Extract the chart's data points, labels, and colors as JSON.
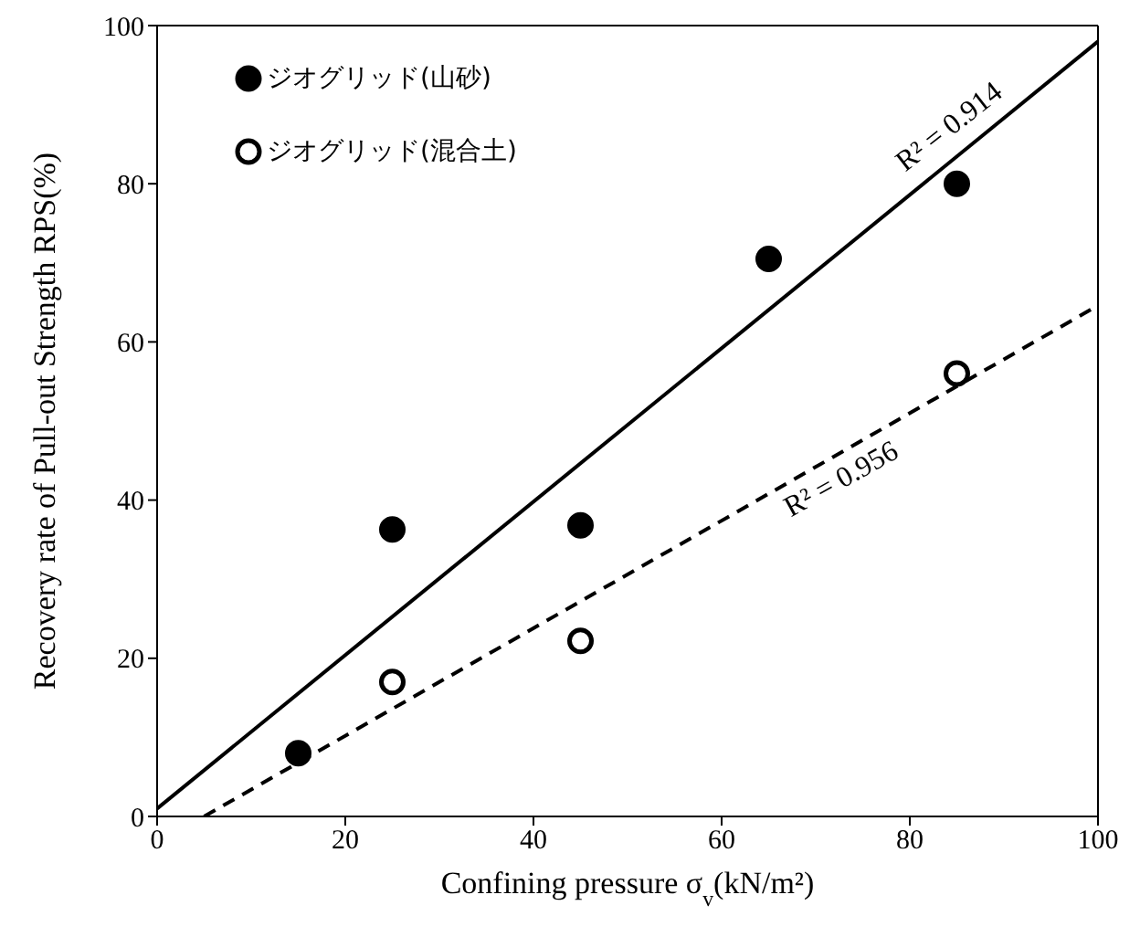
{
  "chart_data": {
    "type": "scatter",
    "xlabel": "Confining pressure σ$_{v}$(kN/m²)",
    "ylabel": "Recovery rate of Pull-out Strength RPS(%)",
    "xlim": [
      0,
      100
    ],
    "ylim": [
      0,
      100
    ],
    "xticks": [
      0,
      20,
      40,
      60,
      80,
      100
    ],
    "yticks": [
      0,
      20,
      40,
      60,
      80,
      100
    ],
    "legend": "top left",
    "series": [
      {
        "name": "ジオグリッド(山砂)",
        "color": "#000000",
        "marker": "circle",
        "x": [
          15,
          25,
          45,
          65,
          85
        ],
        "values": [
          8,
          36.3,
          36.8,
          70.5,
          80
        ]
      },
      {
        "name": "ジオグリッド(混合土)",
        "color": "#000000",
        "marker": "circle",
        "x": [
          25,
          45,
          85
        ],
        "values": [
          17,
          22.2,
          56
        ]
      },
      {
        "type": "line",
        "color": "#000000",
        "marker": "none",
        "line_style": "solid",
        "x": [
          0,
          100
        ],
        "values": [
          1,
          98
        ]
      },
      {
        "type": "line",
        "color": "#000000",
        "marker": "none",
        "line_style": "dashed",
        "x": [
          5,
          100
        ],
        "values": [
          0,
          64.6
        ]
      }
    ],
    "annotations": [
      "R² = 0.914",
      "R² = 0.956"
    ]
  }
}
